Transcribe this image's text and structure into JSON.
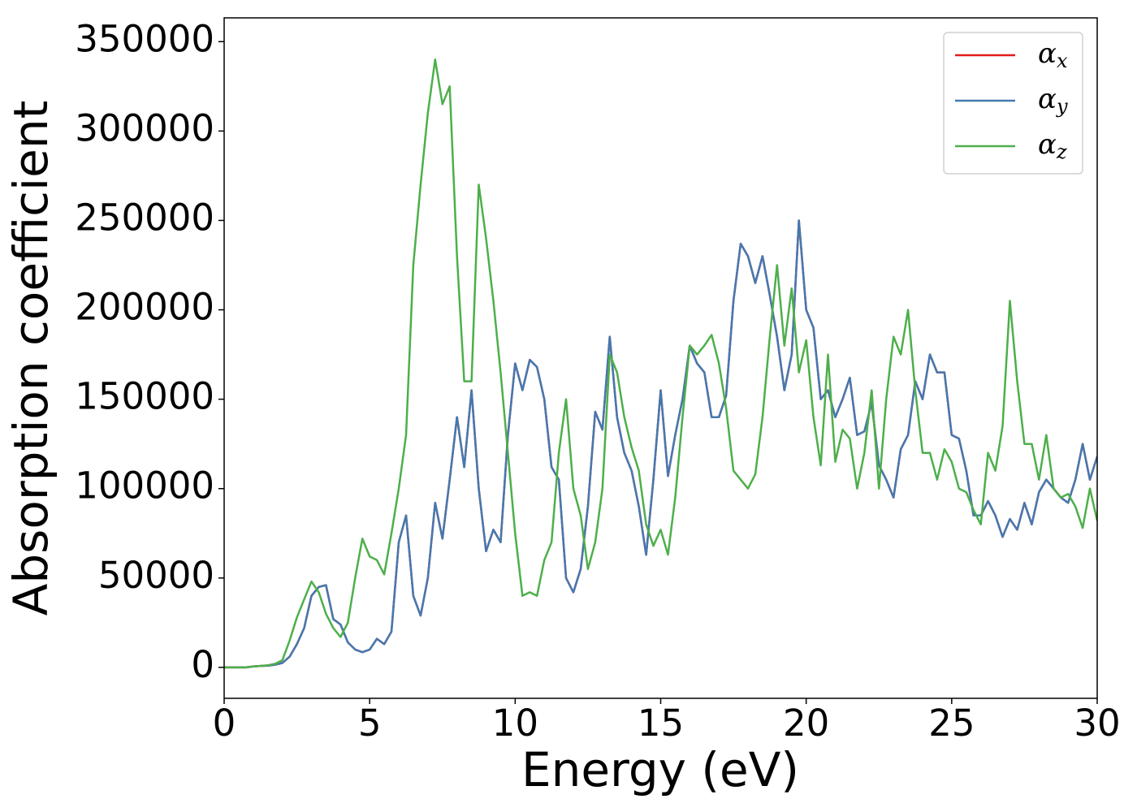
{
  "chart_data": {
    "type": "line",
    "xlabel": "Energy (eV)",
    "ylabel": "Absorption coefficient",
    "xlim": [
      0,
      30
    ],
    "ylim": [
      -17300,
      363300
    ],
    "xticks": [
      0,
      5,
      10,
      15,
      20,
      25,
      30
    ],
    "yticks": [
      0,
      50000,
      100000,
      150000,
      200000,
      250000,
      300000,
      350000
    ],
    "legend": "upper right",
    "grid": false,
    "x": [
      0,
      0.25,
      0.5,
      0.75,
      1,
      1.25,
      1.5,
      1.75,
      2,
      2.25,
      2.5,
      2.75,
      3,
      3.25,
      3.5,
      3.75,
      4,
      4.25,
      4.5,
      4.75,
      5,
      5.25,
      5.5,
      5.75,
      6,
      6.25,
      6.5,
      6.75,
      7,
      7.25,
      7.5,
      7.75,
      8,
      8.25,
      8.5,
      8.75,
      9,
      9.25,
      9.5,
      9.75,
      10,
      10.25,
      10.5,
      10.75,
      11,
      11.25,
      11.5,
      11.75,
      12,
      12.25,
      12.5,
      12.75,
      13,
      13.25,
      13.5,
      13.75,
      14,
      14.25,
      14.5,
      14.75,
      15,
      15.25,
      15.5,
      15.75,
      16,
      16.25,
      16.5,
      16.75,
      17,
      17.25,
      17.5,
      17.75,
      18,
      18.25,
      18.5,
      18.75,
      19,
      19.25,
      19.5,
      19.75,
      20,
      20.25,
      20.5,
      20.75,
      21,
      21.25,
      21.5,
      21.75,
      22,
      22.25,
      22.5,
      22.75,
      23,
      23.25,
      23.5,
      23.75,
      24,
      24.25,
      24.5,
      24.75,
      25,
      25.25,
      25.5,
      25.75,
      26,
      26.25,
      26.5,
      26.75,
      27,
      27.25,
      27.5,
      27.75,
      28,
      28.25,
      28.5,
      28.75,
      29,
      29.25,
      29.5,
      29.75,
      30
    ],
    "series": [
      {
        "name": "αx",
        "color": "#e41a1c",
        "values": [
          0,
          0,
          0,
          0,
          500,
          800,
          1000,
          1500,
          2500,
          6000,
          13000,
          22000,
          40000,
          45000,
          46000,
          27000,
          24000,
          14000,
          10000,
          8500,
          10000,
          16000,
          13000,
          20000,
          70000,
          85000,
          40000,
          29000,
          50000,
          92000,
          72000,
          105000,
          140000,
          112000,
          155000,
          100000,
          65000,
          77000,
          70000,
          130000,
          170000,
          155000,
          172000,
          168000,
          150000,
          112000,
          105000,
          50000,
          42000,
          55000,
          90000,
          143000,
          133000,
          185000,
          140000,
          120000,
          110000,
          90000,
          63000,
          105000,
          155000,
          107000,
          130000,
          150000,
          180000,
          170000,
          165000,
          140000,
          140000,
          152000,
          205000,
          237000,
          230000,
          215000,
          230000,
          208000,
          185000,
          155000,
          175000,
          250000,
          200000,
          190000,
          150000,
          155000,
          140000,
          150000,
          162000,
          130000,
          132000,
          148000,
          113000,
          105000,
          95000,
          122000,
          130000,
          160000,
          150000,
          175000,
          165000,
          165000,
          130000,
          128000,
          110000,
          85000,
          85000,
          93000,
          85000,
          73000,
          83000,
          77000,
          92000,
          80000,
          98000,
          105000,
          100000,
          95000,
          92000,
          105000,
          125000,
          105000,
          118000
        ]
      },
      {
        "name": "αy",
        "color": "#4479b0",
        "values": [
          0,
          0,
          0,
          0,
          500,
          800,
          1000,
          1500,
          2500,
          6000,
          13000,
          22000,
          40000,
          45000,
          46000,
          27000,
          24000,
          14000,
          10000,
          8500,
          10000,
          16000,
          13000,
          20000,
          70000,
          85000,
          40000,
          29000,
          50000,
          92000,
          72000,
          105000,
          140000,
          112000,
          155000,
          100000,
          65000,
          77000,
          70000,
          130000,
          170000,
          155000,
          172000,
          168000,
          150000,
          112000,
          105000,
          50000,
          42000,
          55000,
          90000,
          143000,
          133000,
          185000,
          140000,
          120000,
          110000,
          90000,
          63000,
          105000,
          155000,
          107000,
          130000,
          150000,
          180000,
          170000,
          165000,
          140000,
          140000,
          152000,
          205000,
          237000,
          230000,
          215000,
          230000,
          208000,
          185000,
          155000,
          175000,
          250000,
          200000,
          190000,
          150000,
          155000,
          140000,
          150000,
          162000,
          130000,
          132000,
          148000,
          113000,
          105000,
          95000,
          122000,
          130000,
          160000,
          150000,
          175000,
          165000,
          165000,
          130000,
          128000,
          110000,
          85000,
          85000,
          93000,
          85000,
          73000,
          83000,
          77000,
          92000,
          80000,
          98000,
          105000,
          100000,
          95000,
          92000,
          105000,
          125000,
          105000,
          118000
        ]
      },
      {
        "name": "αz",
        "color": "#4daf4a",
        "values": [
          0,
          0,
          0,
          0,
          500,
          800,
          1200,
          2000,
          4000,
          15000,
          28000,
          38000,
          48000,
          42000,
          30000,
          22000,
          17000,
          25000,
          50000,
          72000,
          62000,
          60000,
          52000,
          75000,
          100000,
          130000,
          225000,
          270000,
          310000,
          340000,
          315000,
          325000,
          230000,
          160000,
          160000,
          270000,
          240000,
          205000,
          165000,
          120000,
          75000,
          40000,
          42000,
          40000,
          60000,
          70000,
          120000,
          150000,
          100000,
          85000,
          55000,
          70000,
          100000,
          175000,
          165000,
          140000,
          123000,
          110000,
          80000,
          68000,
          77000,
          63000,
          95000,
          140000,
          180000,
          175000,
          180000,
          186000,
          170000,
          145000,
          110000,
          105000,
          100000,
          108000,
          140000,
          185000,
          225000,
          180000,
          212000,
          165000,
          183000,
          140000,
          113000,
          175000,
          115000,
          133000,
          128000,
          100000,
          120000,
          155000,
          100000,
          150000,
          185000,
          175000,
          200000,
          155000,
          120000,
          120000,
          105000,
          122000,
          115000,
          100000,
          98000,
          88000,
          80000,
          120000,
          110000,
          135000,
          205000,
          160000,
          125000,
          125000,
          105000,
          130000,
          100000,
          95000,
          97000,
          90000,
          78000,
          100000,
          82000
        ]
      }
    ]
  }
}
